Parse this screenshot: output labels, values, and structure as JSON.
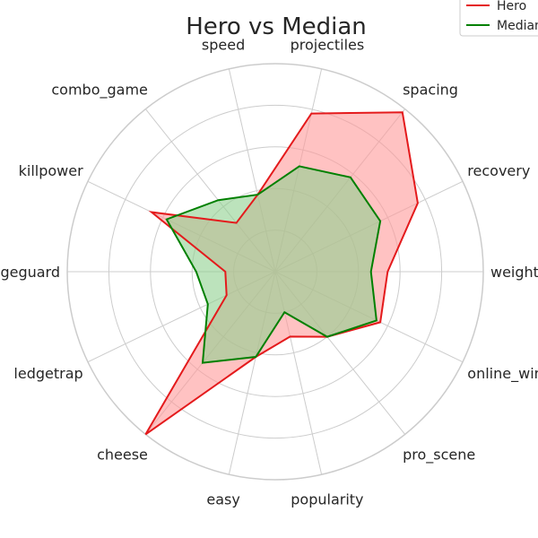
{
  "chart_data": {
    "type": "radar",
    "title": "Hero vs Median",
    "categories": [
      "weight",
      "recovery",
      "spacing",
      "projectiles",
      "speed",
      "combo_game",
      "killpower",
      "edgeguard",
      "ledgetrap",
      "cheese",
      "easy",
      "popularity",
      "pro_scene",
      "online_winrate"
    ],
    "rlim": [
      0,
      5
    ],
    "grid": true,
    "legend_position": "top-right",
    "series": [
      {
        "name": "Hero",
        "color": "#e41a1c",
        "fill": "#ff9999",
        "values": [
          2.7,
          3.8,
          4.9,
          3.9,
          1.9,
          1.5,
          3.3,
          1.2,
          1.3,
          5.0,
          2.1,
          1.6,
          2.0,
          2.8
        ]
      },
      {
        "name": "Median",
        "color": "#008000",
        "fill": "#90d090",
        "values": [
          2.3,
          2.8,
          2.9,
          2.6,
          1.9,
          2.2,
          2.9,
          1.9,
          1.8,
          2.8,
          2.1,
          1.0,
          2.0,
          2.7
        ]
      }
    ]
  }
}
